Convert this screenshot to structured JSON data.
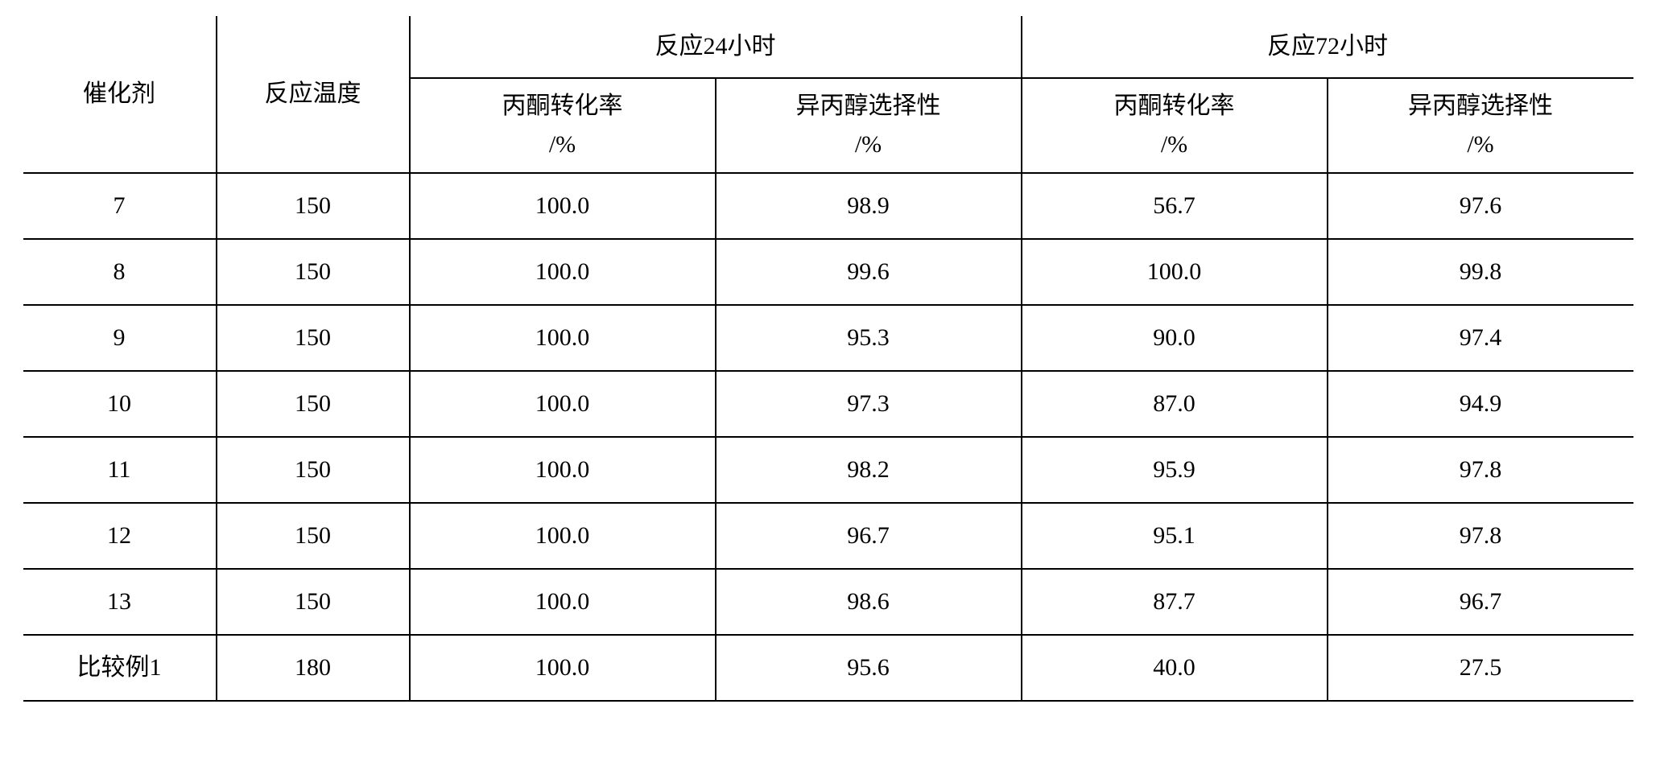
{
  "table": {
    "fontsize_header": 30,
    "fontsize_body": 30,
    "border_color": "#000000",
    "background_color": "#ffffff",
    "header": {
      "catalyst": "催化剂",
      "temperature": "反应温度",
      "group_24h": "反应24小时",
      "group_72h": "反应72小时",
      "conversion_line1": "丙酮转化率",
      "conversion_line2": "/%",
      "selectivity_line1": "异丙醇选择性",
      "selectivity_line2": "/%"
    },
    "rows": [
      {
        "catalyst": "7",
        "temp": "150",
        "conv24": "100.0",
        "sel24": "98.9",
        "conv72": "56.7",
        "sel72": "97.6"
      },
      {
        "catalyst": "8",
        "temp": "150",
        "conv24": "100.0",
        "sel24": "99.6",
        "conv72": "100.0",
        "sel72": "99.8"
      },
      {
        "catalyst": "9",
        "temp": "150",
        "conv24": "100.0",
        "sel24": "95.3",
        "conv72": "90.0",
        "sel72": "97.4"
      },
      {
        "catalyst": "10",
        "temp": "150",
        "conv24": "100.0",
        "sel24": "97.3",
        "conv72": "87.0",
        "sel72": "94.9"
      },
      {
        "catalyst": "11",
        "temp": "150",
        "conv24": "100.0",
        "sel24": "98.2",
        "conv72": "95.9",
        "sel72": "97.8"
      },
      {
        "catalyst": "12",
        "temp": "150",
        "conv24": "100.0",
        "sel24": "96.7",
        "conv72": "95.1",
        "sel72": "97.8"
      },
      {
        "catalyst": "13",
        "temp": "150",
        "conv24": "100.0",
        "sel24": "98.6",
        "conv72": "87.7",
        "sel72": "96.7"
      },
      {
        "catalyst": "比较例1",
        "temp": "180",
        "conv24": "100.0",
        "sel24": "95.6",
        "conv72": "40.0",
        "sel72": "27.5"
      }
    ]
  }
}
